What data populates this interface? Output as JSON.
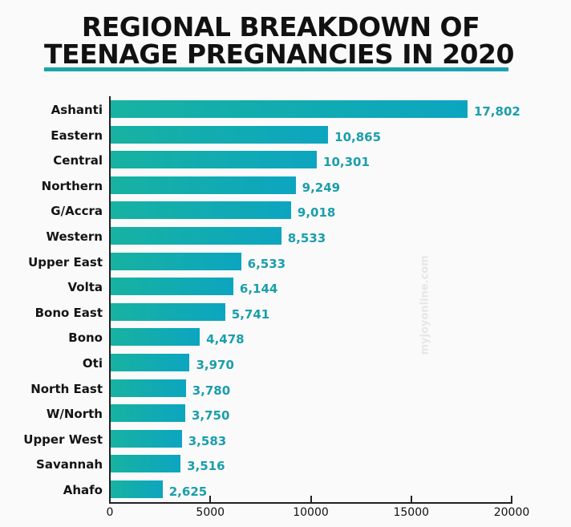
{
  "header": {
    "title_line1": "REGIONAL BREAKDOWN OF",
    "title_line2": "TEENAGE PREGNANCIES IN 2020"
  },
  "watermark": "myjoyonline.com",
  "colors": {
    "bar_start": "#17b2a1",
    "bar_end": "#0ca5c0",
    "value_label": "#1b9eab",
    "underline": "#1ba6a8"
  },
  "chart_data": {
    "type": "bar",
    "orientation": "horizontal",
    "title": "REGIONAL BREAKDOWN OF TEENAGE PREGNANCIES IN 2020",
    "xlabel": "",
    "ylabel": "",
    "xlim": [
      0,
      20000
    ],
    "x_ticks": [
      "0",
      "5000",
      "10000",
      "15000",
      "20000"
    ],
    "grid": false,
    "legend": null,
    "categories": [
      "Ashanti",
      "Eastern",
      "Central",
      "Northern",
      "G/Accra",
      "Western",
      "Upper East",
      "Volta",
      "Bono East",
      "Bono",
      "Oti",
      "North East",
      "W/North",
      "Upper West",
      "Savannah",
      "Ahafo"
    ],
    "values": [
      17802,
      10865,
      10301,
      9249,
      9018,
      8533,
      6533,
      6144,
      5741,
      4478,
      3970,
      3780,
      3750,
      3583,
      3516,
      2625
    ],
    "value_labels": [
      "17,802",
      "10,865",
      "10,301",
      "9,249",
      "9,018",
      "8,533",
      "6,533",
      "6,144",
      "5,741",
      "4,478",
      "3,970",
      "3,780",
      "3,750",
      "3,583",
      "3,516",
      "2,625"
    ]
  }
}
